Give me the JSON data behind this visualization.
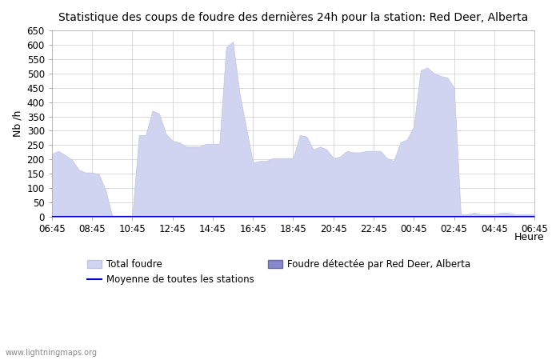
{
  "title": "Statistique des coups de foudre des dernières 24h pour la station: Red Deer, Alberta",
  "xlabel": "Heure",
  "ylabel": "Nb /h",
  "xlim_labels": [
    "06:45",
    "08:45",
    "10:45",
    "12:45",
    "14:45",
    "16:45",
    "18:45",
    "20:45",
    "22:45",
    "00:45",
    "02:45",
    "04:45",
    "06:45"
  ],
  "ylim": [
    0,
    650
  ],
  "yticks": [
    0,
    50,
    100,
    150,
    200,
    250,
    300,
    350,
    400,
    450,
    500,
    550,
    600,
    650
  ],
  "bg_color": "#ffffff",
  "grid_color": "#cccccc",
  "total_foudre_color": "#d0d4f0",
  "total_foudre_edge": "#c0c4e0",
  "detected_color": "#8888cc",
  "detected_edge": "#6666aa",
  "mean_line_color": "#0000cc",
  "watermark": "www.lightningmaps.org",
  "legend_total": "Total foudre",
  "legend_mean": "Moyenne de toutes les stations",
  "legend_detected": "Foudre détectée par Red Deer, Alberta",
  "total_foudre": [
    220,
    230,
    215,
    200,
    165,
    155,
    155,
    150,
    95,
    5,
    5,
    5,
    5,
    285,
    285,
    370,
    360,
    290,
    265,
    260,
    245,
    245,
    245,
    255,
    255,
    255,
    590,
    610,
    430,
    310,
    190,
    195,
    195,
    205,
    205,
    205,
    205,
    285,
    280,
    235,
    245,
    235,
    205,
    210,
    230,
    225,
    225,
    230,
    230,
    230,
    205,
    195,
    260,
    270,
    315,
    510,
    520,
    500,
    490,
    485,
    450,
    10,
    10,
    15,
    10,
    10,
    10,
    15,
    15,
    10,
    10,
    10,
    10
  ],
  "detected_foudre": [
    5,
    5,
    5,
    5,
    5,
    5,
    5,
    5,
    5,
    5,
    5,
    5,
    5,
    5,
    5,
    5,
    5,
    5,
    5,
    5,
    5,
    5,
    5,
    5,
    5,
    5,
    5,
    5,
    5,
    5,
    5,
    5,
    5,
    5,
    5,
    5,
    5,
    5,
    5,
    5,
    5,
    5,
    5,
    5,
    5,
    5,
    5,
    5,
    5,
    5,
    5,
    5,
    5,
    5,
    5,
    5,
    5,
    5,
    5,
    5,
    5,
    5,
    5,
    5,
    5,
    5,
    5,
    5,
    5,
    5,
    5,
    5,
    5
  ],
  "mean_line": [
    1,
    1,
    1,
    1,
    1,
    1,
    1,
    1,
    1,
    1,
    1,
    1,
    1,
    1,
    1,
    1,
    1,
    1,
    1,
    1,
    1,
    1,
    1,
    1,
    1,
    1,
    1,
    1,
    1,
    1,
    1,
    1,
    1,
    1,
    1,
    1,
    1,
    1,
    1,
    1,
    1,
    1,
    1,
    1,
    1,
    1,
    1,
    1,
    1,
    1,
    1,
    1,
    1,
    1,
    1,
    1,
    1,
    1,
    1,
    1,
    1,
    1,
    1,
    1,
    1,
    1,
    1,
    1,
    1,
    1,
    1,
    1,
    1
  ]
}
